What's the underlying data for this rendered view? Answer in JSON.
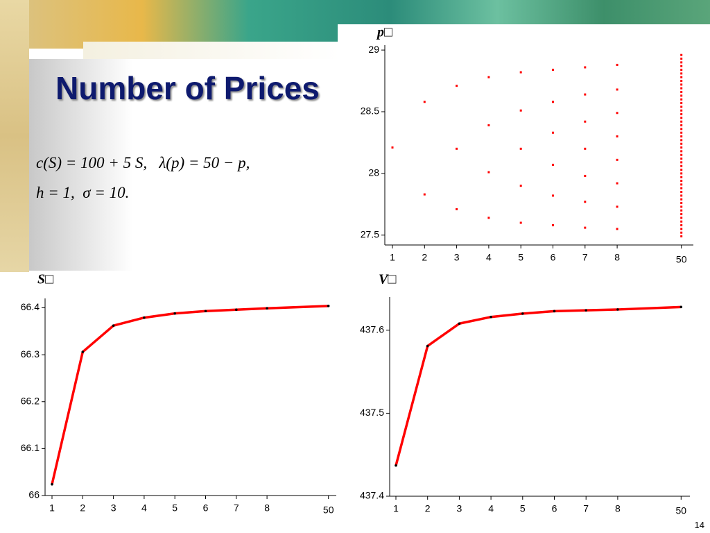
{
  "slide": {
    "title": "Number of Prices",
    "formula": [
      "c(S) = 100 + 5 S,   λ(p) = 50 − p,",
      "h = 1,  σ = 10."
    ],
    "page_number": "14"
  },
  "chart_data": [
    {
      "type": "scatter",
      "title": "p□",
      "color": "#ff0000",
      "categories": [
        "1",
        "2",
        "3",
        "4",
        "5",
        "6",
        "7",
        "8",
        "50"
      ],
      "values": [
        [
          28.21
        ],
        [
          28.58,
          27.83
        ],
        [
          28.71,
          28.2,
          27.71
        ],
        [
          28.78,
          28.39,
          28.01,
          27.64
        ],
        [
          28.82,
          28.51,
          28.2,
          27.9,
          27.6
        ],
        [
          28.84,
          28.58,
          28.33,
          28.07,
          27.82,
          27.58
        ],
        [
          28.86,
          28.64,
          28.42,
          28.2,
          27.98,
          27.77,
          27.56
        ],
        [
          28.88,
          28.68,
          28.49,
          28.3,
          28.11,
          27.92,
          27.73,
          27.55
        ],
        [
          28.96,
          28.93,
          28.9,
          28.87,
          28.84,
          28.81,
          28.78,
          28.75,
          28.72,
          28.69,
          28.66,
          28.63,
          28.6,
          28.57,
          28.54,
          28.51,
          28.48,
          28.45,
          28.42,
          28.39,
          28.36,
          28.33,
          28.3,
          28.27,
          28.24,
          28.21,
          28.18,
          28.15,
          28.12,
          28.09,
          28.06,
          28.03,
          28.0,
          27.97,
          27.94,
          27.91,
          27.88,
          27.85,
          27.82,
          27.79,
          27.76,
          27.73,
          27.7,
          27.67,
          27.64,
          27.61,
          27.58,
          27.55,
          27.52,
          27.49
        ]
      ],
      "ylim": [
        27.42,
        29.04
      ],
      "yticks": [
        27.5,
        28,
        28.5,
        29
      ]
    },
    {
      "type": "line",
      "title": "S□",
      "color": "#ff0000",
      "categories": [
        "1",
        "2",
        "3",
        "4",
        "5",
        "6",
        "7",
        "8",
        "50"
      ],
      "values": [
        66.024,
        66.306,
        66.362,
        66.379,
        66.388,
        66.393,
        66.396,
        66.399,
        66.404
      ],
      "ylim": [
        66,
        66.42
      ],
      "yticks": [
        66,
        66.1,
        66.2,
        66.3,
        66.4
      ]
    },
    {
      "type": "line",
      "title": "V□",
      "color": "#ff0000",
      "categories": [
        "1",
        "2",
        "3",
        "4",
        "5",
        "6",
        "7",
        "8",
        "50"
      ],
      "values": [
        437.437,
        437.581,
        437.608,
        437.616,
        437.62,
        437.623,
        437.624,
        437.625,
        437.628
      ],
      "ylim": [
        437.4,
        437.64
      ],
      "yticks": [
        437.4,
        437.5,
        437.6
      ]
    }
  ]
}
